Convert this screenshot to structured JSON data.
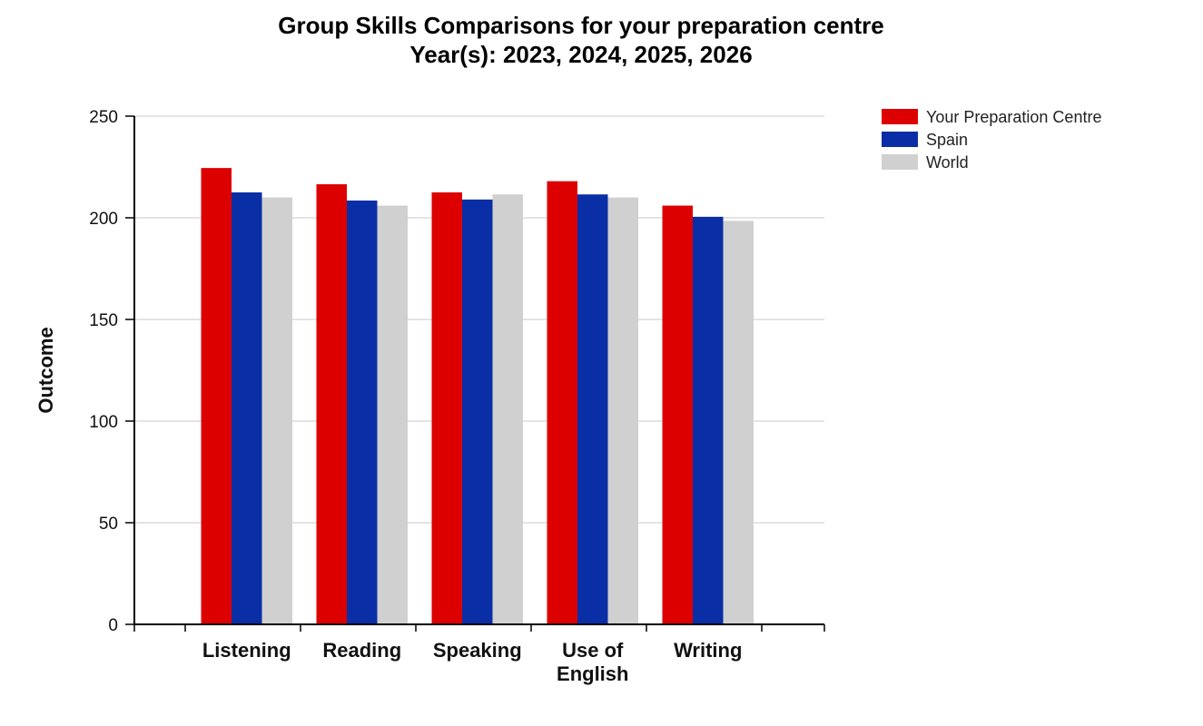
{
  "chart_data": {
    "type": "bar",
    "title": "Group Skills Comparisons for your preparation centre",
    "subtitle": "Year(s): 2023, 2024, 2025, 2026",
    "ylabel": "Outcome",
    "xlabel": "",
    "categories": [
      [
        "Listening"
      ],
      [
        "Reading"
      ],
      [
        "Speaking"
      ],
      [
        "Use of",
        "English"
      ],
      [
        "Writing"
      ]
    ],
    "series": [
      {
        "name": "Your Preparation Centre",
        "color": "#dd0000",
        "values": [
          224.5,
          216.5,
          212.5,
          218,
          206
        ]
      },
      {
        "name": "Spain",
        "color": "#0a2ea6",
        "values": [
          212.5,
          208.5,
          209,
          211.5,
          200.5
        ]
      },
      {
        "name": "World",
        "color": "#d0d0d0",
        "values": [
          210,
          206,
          211.5,
          210,
          198.5
        ]
      }
    ],
    "ylim": [
      0,
      250
    ],
    "yticks": [
      0,
      50,
      100,
      150,
      200,
      250
    ],
    "grid": true,
    "legend_position": "top-right"
  }
}
